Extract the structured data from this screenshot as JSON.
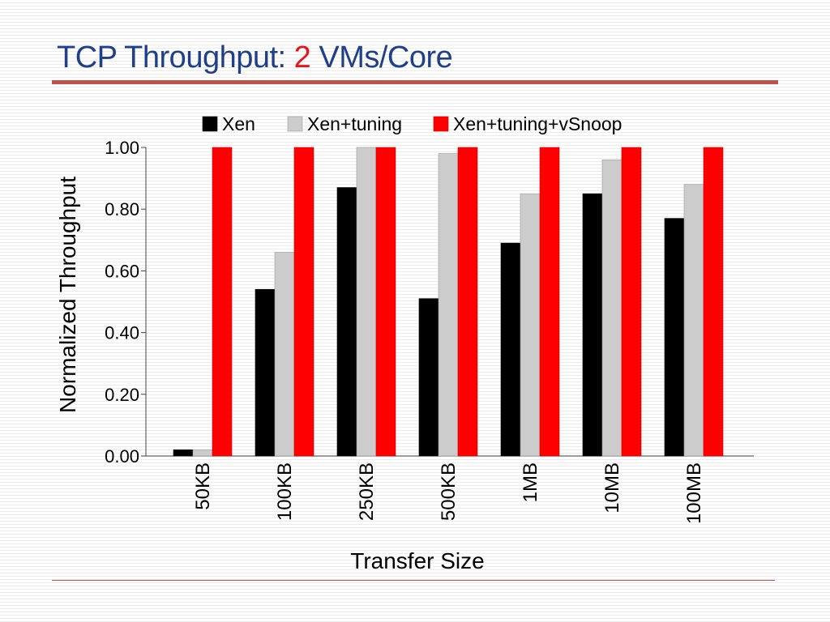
{
  "slide": {
    "title_main": "TCP Throughput: ",
    "title_accent": "2",
    "title_rest": " VMs/Core"
  },
  "colors": {
    "title": "#1f3f86",
    "accent": "#e8141b",
    "rule": "#c0504d"
  },
  "chart_data": {
    "type": "bar",
    "title": "",
    "xlabel": "Transfer Size",
    "ylabel": "Normalized Throughput",
    "ylim": [
      0,
      1.0
    ],
    "yticks": [
      "0.00",
      "0.20",
      "0.40",
      "0.60",
      "0.80",
      "1.00"
    ],
    "categories": [
      "50KB",
      "100KB",
      "250KB",
      "500KB",
      "1MB",
      "10MB",
      "100MB"
    ],
    "legend_position": "top",
    "grid": false,
    "series": [
      {
        "name": "Xen",
        "color": "#000000",
        "values": [
          0.02,
          0.54,
          0.87,
          0.51,
          0.69,
          0.85,
          0.77
        ]
      },
      {
        "name": "Xen+tuning",
        "color": "#cccccc",
        "values": [
          0.02,
          0.66,
          1.0,
          0.98,
          0.85,
          0.96,
          0.88
        ]
      },
      {
        "name": "Xen+tuning+vSnoop",
        "color": "#ff0000",
        "values": [
          1.0,
          1.0,
          1.0,
          1.0,
          1.0,
          1.0,
          1.0
        ]
      }
    ]
  }
}
